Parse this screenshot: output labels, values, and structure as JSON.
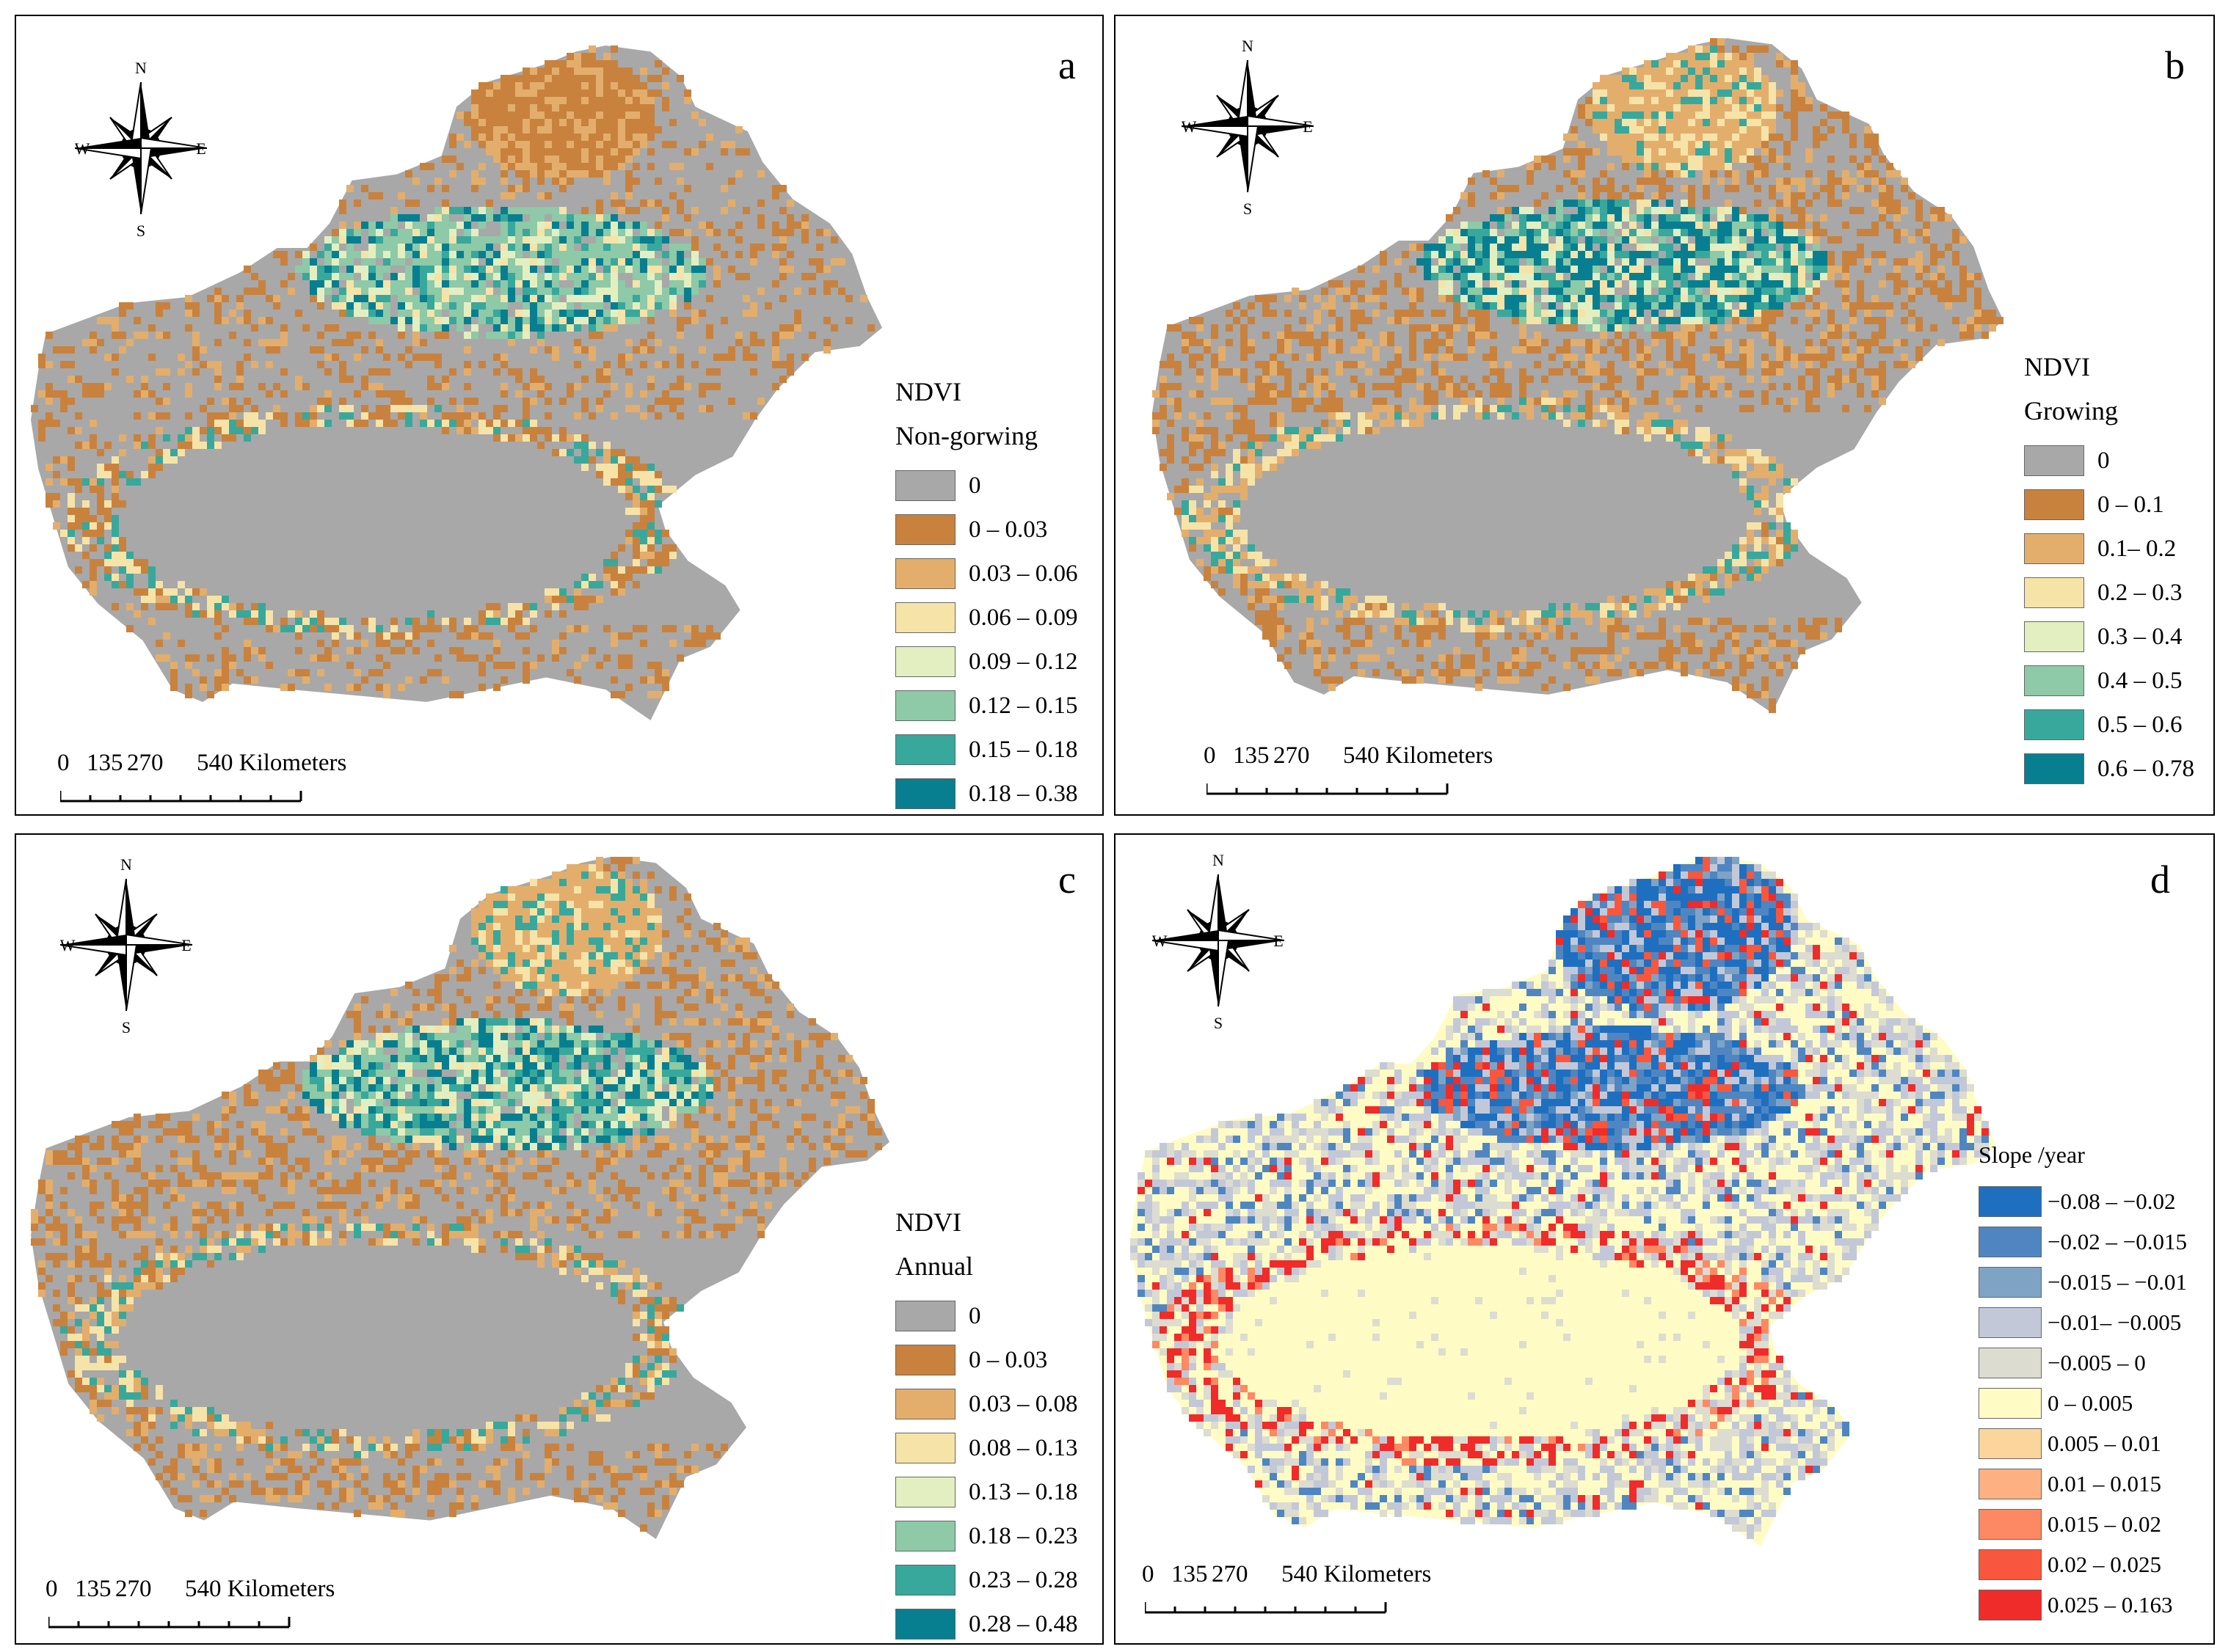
{
  "colors": {
    "region": "#a8a8a8",
    "ndvi_ramp": [
      "#a8a8a8",
      "#c8823e",
      "#e3ae6c",
      "#f6e3a8",
      "#e3efc0",
      "#8ec9a8",
      "#38a89c",
      "#077f90"
    ],
    "slope_ramp": [
      "#1f6fc0",
      "#4f86c1",
      "#7ea3c5",
      "#c3c8d8",
      "#dddcd0",
      "#fefcc4",
      "#fcd59c",
      "#fdb183",
      "#fc8963",
      "#f8573d",
      "#ef2c2a"
    ],
    "frame": "#000000"
  },
  "scale_bar": {
    "labels": [
      "0",
      "135",
      "270",
      "540 Kilometers"
    ]
  },
  "compass": {
    "n": "N",
    "s": "S",
    "e": "E",
    "w": "W"
  },
  "panels": [
    {
      "id": "a",
      "letter": "a",
      "legend_title": "NDVI",
      "legend_subtitle": "Non-gorwing",
      "legend_items": [
        "0",
        "0 – 0.03",
        "0.03 – 0.06",
        "0.06 – 0.09",
        "0.09 – 0.12",
        "0.12 – 0.15",
        "0.15 – 0.18",
        "0.18 – 0.38"
      ],
      "legend_colors": [
        "#a8a8a8",
        "#c8823e",
        "#e3ae6c",
        "#f6e3a8",
        "#e3efc0",
        "#8ec9a8",
        "#38a89c",
        "#077f90"
      ]
    },
    {
      "id": "b",
      "letter": "b",
      "legend_title": "NDVI",
      "legend_subtitle": "Growing",
      "legend_items": [
        "0",
        "0 – 0.1",
        "0.1– 0.2",
        "0.2 – 0.3",
        "0.3 – 0.4",
        "0.4 – 0.5",
        "0.5 – 0.6",
        "0.6 – 0.78"
      ],
      "legend_colors": [
        "#a8a8a8",
        "#c8823e",
        "#e3ae6c",
        "#f6e3a8",
        "#e3efc0",
        "#8ec9a8",
        "#38a89c",
        "#077f90"
      ]
    },
    {
      "id": "c",
      "letter": "c",
      "legend_title": "NDVI",
      "legend_subtitle": "Annual",
      "legend_items": [
        "0",
        "0 – 0.03",
        "0.03 – 0.08",
        "0.08 – 0.13",
        "0.13 – 0.18",
        "0.18 – 0.23",
        "0.23 – 0.28",
        "0.28 – 0.48"
      ],
      "legend_colors": [
        "#a8a8a8",
        "#c8823e",
        "#e3ae6c",
        "#f6e3a8",
        "#e3efc0",
        "#8ec9a8",
        "#38a89c",
        "#077f90"
      ]
    },
    {
      "id": "d",
      "letter": "d",
      "legend_title": "Slope /year",
      "legend_subtitle": "",
      "legend_items": [
        "−0.08 – −0.02",
        "−0.02 – −0.015",
        "−0.015 – −0.01",
        "−0.01– −0.005",
        "−0.005 – 0",
        "0 – 0.005",
        "0.005 – 0.01",
        "0.01 – 0.015",
        "0.015 – 0.02",
        "0.02 – 0.025",
        "0.025 – 0.163"
      ],
      "legend_colors": [
        "#1f6fc0",
        "#4f86c1",
        "#7ea3c5",
        "#c3c8d8",
        "#dddcd0",
        "#fefcc4",
        "#fcd59c",
        "#fdb183",
        "#fc8963",
        "#f8573d",
        "#ef2c2a"
      ]
    }
  ]
}
